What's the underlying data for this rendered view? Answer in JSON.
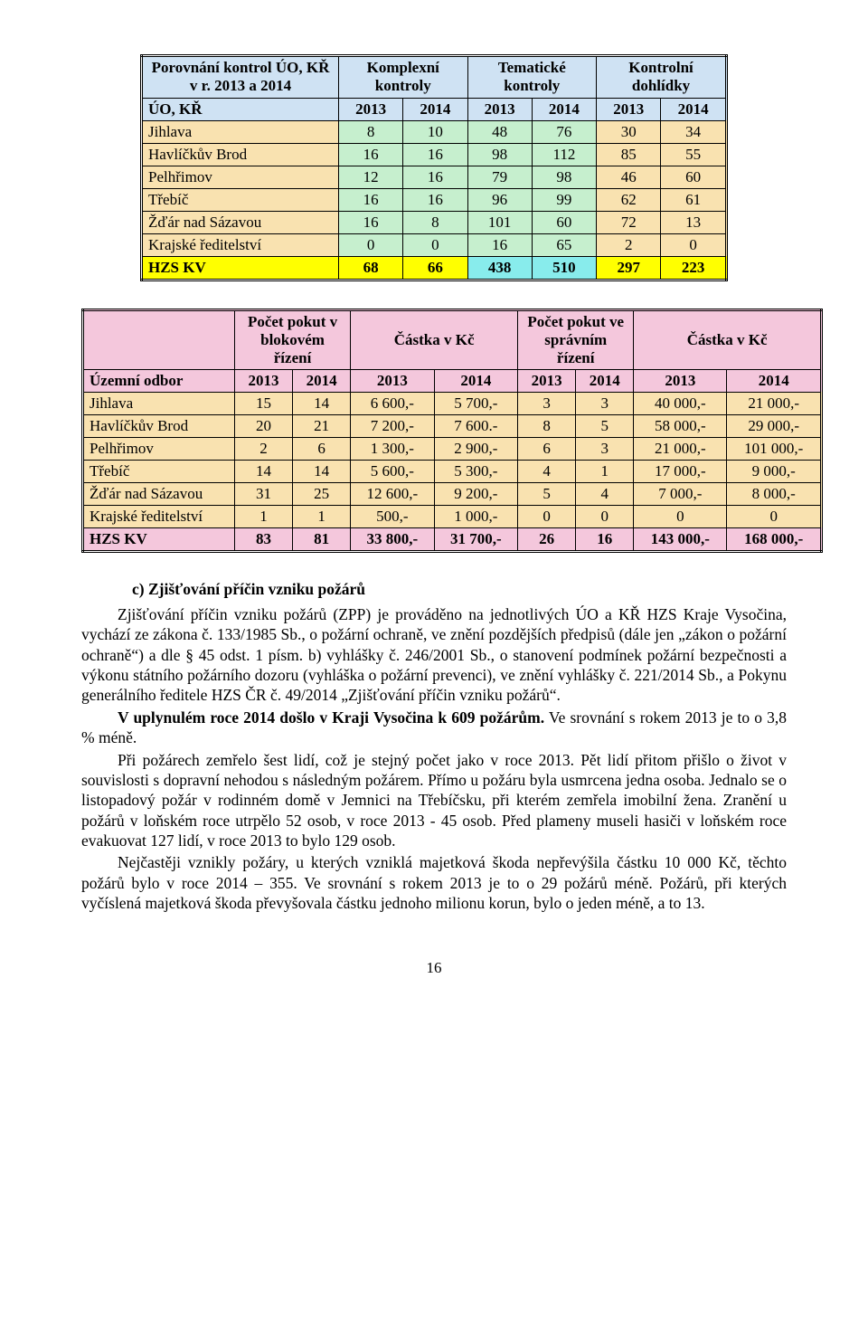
{
  "table1": {
    "header": {
      "rowLabel": "Porovnání kontrol ÚO, KŘ v r. 2013 a 2014",
      "groups": [
        "Komplexní kontroly",
        "Tematické kontroly",
        "Kontrolní dohlídky"
      ],
      "yearsRowLabel": "ÚO, KŘ",
      "years": [
        "2013",
        "2014",
        "2013",
        "2014",
        "2013",
        "2014"
      ]
    },
    "rows": [
      {
        "label": "Jihlava",
        "vals": [
          "8",
          "10",
          "48",
          "76",
          "30",
          "34"
        ]
      },
      {
        "label": "Havlíčkův Brod",
        "vals": [
          "16",
          "16",
          "98",
          "112",
          "85",
          "55"
        ]
      },
      {
        "label": "Pelhřimov",
        "vals": [
          "12",
          "16",
          "79",
          "98",
          "46",
          "60"
        ]
      },
      {
        "label": "Třebíč",
        "vals": [
          "16",
          "16",
          "96",
          "99",
          "62",
          "61"
        ]
      },
      {
        "label": "Žďár nad Sázavou",
        "vals": [
          "16",
          "8",
          "101",
          "60",
          "72",
          "13"
        ]
      },
      {
        "label": "Krajské ředitelství",
        "vals": [
          "0",
          "0",
          "16",
          "65",
          "2",
          "0"
        ]
      }
    ],
    "totalRow": {
      "label": "HZS KV",
      "vals": [
        "68",
        "66",
        "438",
        "510",
        "297",
        "223"
      ]
    }
  },
  "table2": {
    "header": {
      "groups": [
        "Počet pokut v blokovém řízení",
        "Částka v Kč",
        "Počet pokut ve správním řízení",
        "Částka v Kč"
      ],
      "yearsRowLabel": "Územní odbor",
      "years": [
        "2013",
        "2014",
        "2013",
        "2014",
        "2013",
        "2014",
        "2013",
        "2014"
      ]
    },
    "rows": [
      {
        "label": "Jihlava",
        "vals": [
          "15",
          "14",
          "6 600,-",
          "5 700,-",
          "3",
          "3",
          "40 000,-",
          "21 000,-"
        ]
      },
      {
        "label": "Havlíčkův Brod",
        "vals": [
          "20",
          "21",
          "7 200,-",
          "7 600.-",
          "8",
          "5",
          "58 000,-",
          "29 000,-"
        ]
      },
      {
        "label": "Pelhřimov",
        "vals": [
          "2",
          "6",
          "1 300,-",
          "2 900,-",
          "6",
          "3",
          "21 000,-",
          "101 000,-"
        ]
      },
      {
        "label": "Třebíč",
        "vals": [
          "14",
          "14",
          "5 600,-",
          "5 300,-",
          "4",
          "1",
          "17 000,-",
          "9 000,-"
        ]
      },
      {
        "label": "Žďár nad Sázavou",
        "vals": [
          "31",
          "25",
          "12 600,-",
          "9 200,-",
          "5",
          "4",
          "7 000,-",
          "8 000,-"
        ]
      },
      {
        "label": "Krajské ředitelství",
        "vals": [
          "1",
          "1",
          "500,-",
          "1 000,-",
          "0",
          "0",
          "0",
          "0"
        ]
      }
    ],
    "totalRow": {
      "label": "HZS KV",
      "vals": [
        "83",
        "81",
        "33 800,-",
        "31 700,-",
        "26",
        "16",
        "143 000,-",
        "168 000,-"
      ]
    }
  },
  "text": {
    "sectionHead": "c)  Zjišťování příčin vzniku požárů",
    "p1": "Zjišťování příčin vzniku požárů (ZPP) je prováděno na jednotlivých ÚO a KŘ HZS Kraje Vysočina, vychází ze zákona č. 133/1985 Sb., o požární ochraně, ve znění pozdějších předpisů (dále jen „zákon o požární ochraně“) a dle § 45 odst. 1 písm. b) vyhlášky č. 246/2001 Sb., o stanovení podmínek požární bezpečnosti a výkonu státního požárního dozoru (vyhláška o požární prevenci), ve znění vyhlášky č. 221/2014 Sb., a Pokynu generálního ředitele HZS ČR č. 49/2014 „Zjišťování příčin vzniku požárů“.",
    "p2a": "V uplynulém roce 2014 došlo v Kraji Vysočina k 609 požárům.",
    "p2b": " Ve srovnání s rokem 2013 je to o 3,8 % méně.",
    "p3": "Při požárech zemřelo šest lidí, což je stejný počet jako v roce 2013. Pět lidí přitom přišlo o život v souvislosti s dopravní nehodou s následným požárem. Přímo u požáru byla usmrcena jedna osoba. Jednalo se o listopadový požár v rodinném domě v Jemnici na Třebíčsku, při kterém zemřela imobilní žena. Zranění u požárů v loňském roce utrpělo 52 osob, v roce 2013 - 45 osob. Před plameny museli hasiči v loňském roce evakuovat 127 lidí, v roce 2013 to bylo 129 osob.",
    "p4": "Nejčastěji vznikly požáry, u kterých vzniklá majetková škoda nepřevýšila částku 10 000 Kč, těchto požárů bylo v roce 2014 – 355. Ve srovnání s rokem 2013 je to o 29 požárů méně. Požárů, při kterých vyčíslená majetková škoda převyšovala částku jednoho milionu korun, bylo o jeden méně, a to 13.",
    "pagenum": "16"
  },
  "colors": {
    "headerBlue": "#cfe2f3",
    "headerPink": "#f4c7dc",
    "headerTan": "#f9e79f",
    "rowYellow": "#ffff00",
    "cellCyan": "#88ecec",
    "cellGreen": "#c6efce",
    "cellTan": "#f9e2b0"
  }
}
